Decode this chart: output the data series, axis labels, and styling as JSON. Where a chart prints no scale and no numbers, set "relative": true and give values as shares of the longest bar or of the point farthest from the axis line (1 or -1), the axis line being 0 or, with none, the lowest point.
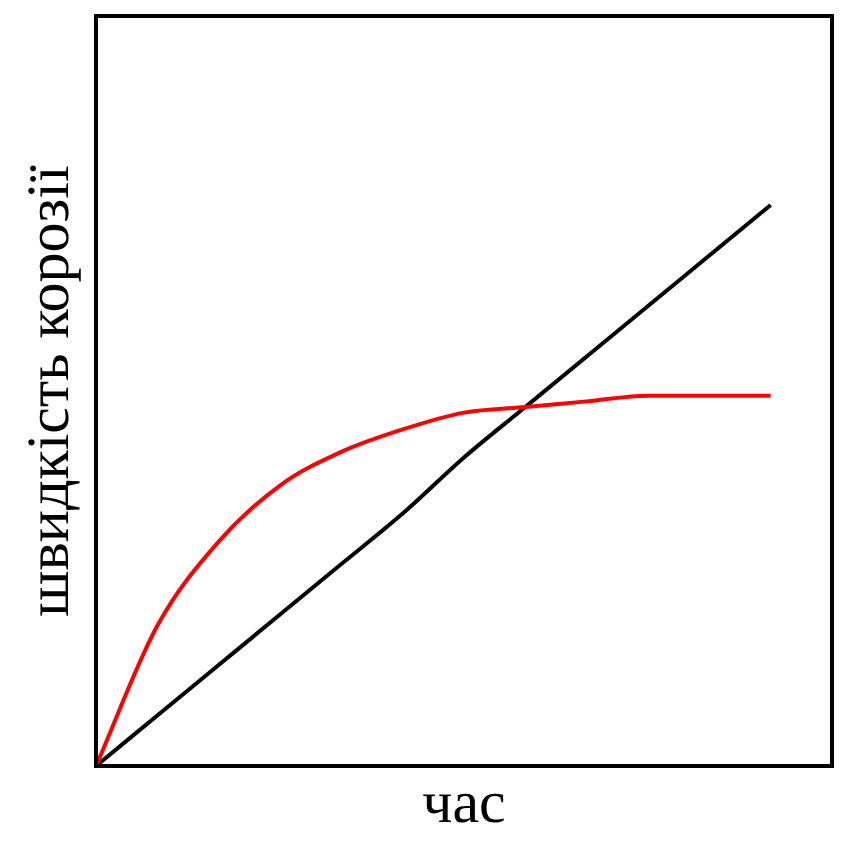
{
  "chart_data": {
    "type": "line",
    "relative": true,
    "xlabel": "час",
    "ylabel": "швидкість корозії",
    "categories": [
      null,
      null,
      null,
      null,
      null,
      null,
      null,
      null,
      null,
      null,
      null,
      null
    ],
    "series": [
      {
        "color": "#ff0000",
        "values": [
          0,
          0.25,
          0.4,
          0.5,
          0.56,
          0.6,
          0.63,
          0.64,
          0.65,
          0.66,
          0.66,
          0.66
        ]
      },
      {
        "color": "#000000",
        "values": [
          0,
          0.09,
          0.18,
          0.27,
          0.36,
          0.45,
          0.55,
          0.64,
          0.73,
          0.82,
          0.91,
          1
        ]
      }
    ],
    "grid": false,
    "legend": false,
    "marker": "none",
    "line_style": "solid"
  }
}
